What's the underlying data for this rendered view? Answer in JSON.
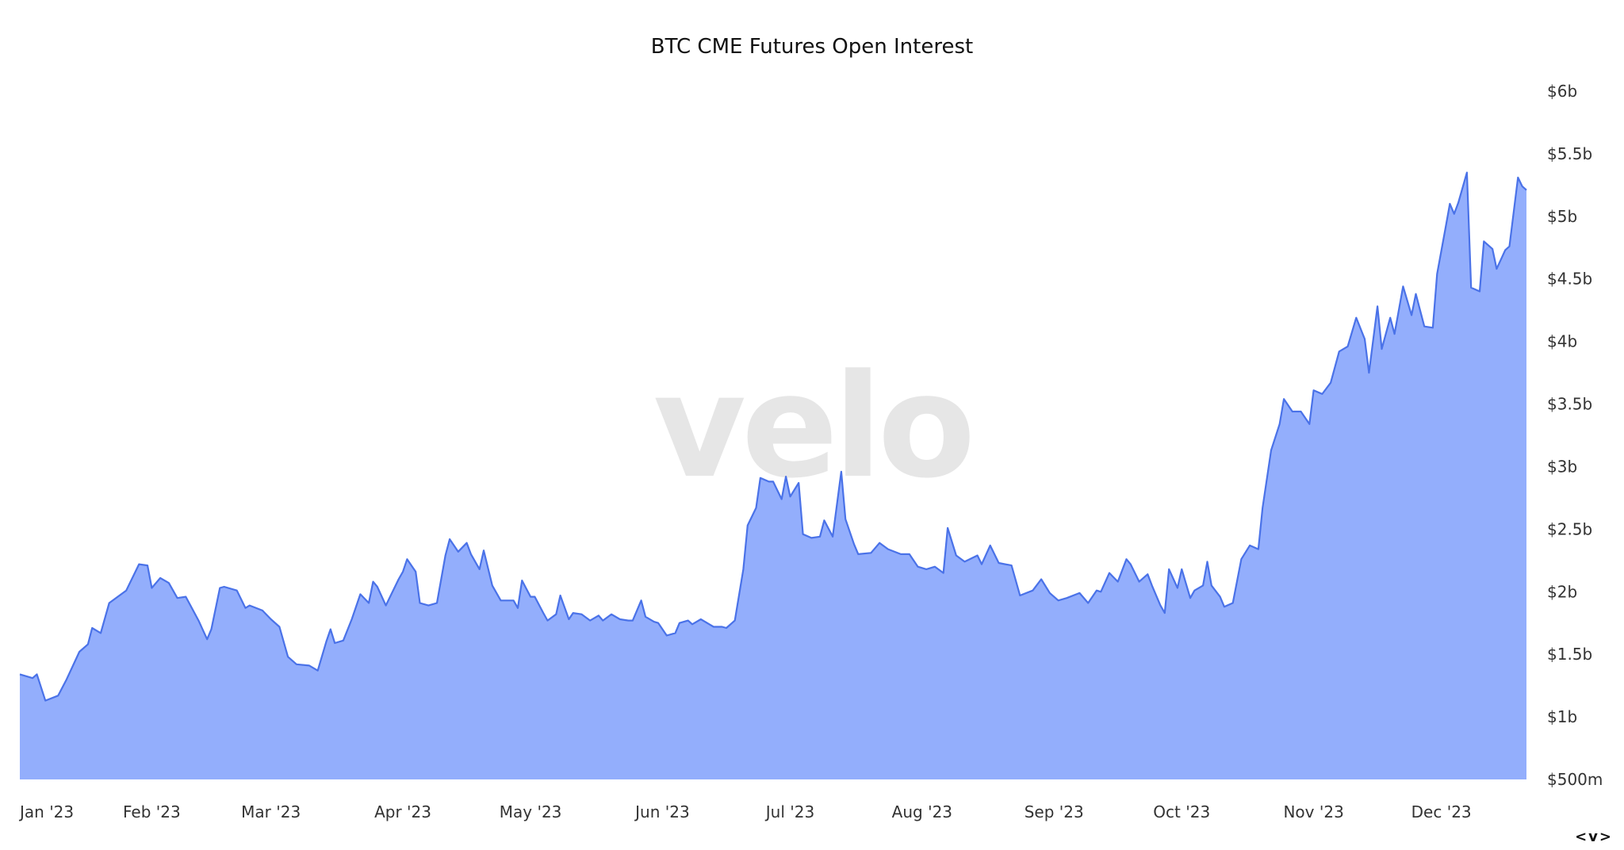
{
  "chart_data": {
    "type": "area",
    "title": "BTC CME Futures Open Interest",
    "xlabel": "",
    "ylabel": "",
    "ylim": [
      0.5,
      6
    ],
    "y_unit": "billions USD",
    "y_axis_position": "right",
    "grid": false,
    "legend": "none",
    "watermark": "velo",
    "colors": {
      "line": "#4a72e8",
      "fill": "#93aefc",
      "watermark": "#e6e6e6"
    },
    "y_ticks": [
      {
        "value": 0.5,
        "label": "$500m"
      },
      {
        "value": 1,
        "label": "$1b"
      },
      {
        "value": 1.5,
        "label": "$1.5b"
      },
      {
        "value": 2,
        "label": "$2b"
      },
      {
        "value": 2.5,
        "label": "$2.5b"
      },
      {
        "value": 3,
        "label": "$3b"
      },
      {
        "value": 3.5,
        "label": "$3.5b"
      },
      {
        "value": 4,
        "label": "$4b"
      },
      {
        "value": 4.5,
        "label": "$4.5b"
      },
      {
        "value": 5,
        "label": "$5b"
      },
      {
        "value": 5.5,
        "label": "$5.5b"
      },
      {
        "value": 6,
        "label": "$6b"
      }
    ],
    "x_ticks": [
      {
        "date": "2023-01-01",
        "label": "Jan '23"
      },
      {
        "date": "2023-02-01",
        "label": "Feb '23"
      },
      {
        "date": "2023-03-01",
        "label": "Mar '23"
      },
      {
        "date": "2023-04-01",
        "label": "Apr '23"
      },
      {
        "date": "2023-05-01",
        "label": "May '23"
      },
      {
        "date": "2023-06-01",
        "label": "Jun '23"
      },
      {
        "date": "2023-07-01",
        "label": "Jul '23"
      },
      {
        "date": "2023-08-01",
        "label": "Aug '23"
      },
      {
        "date": "2023-09-01",
        "label": "Sep '23"
      },
      {
        "date": "2023-10-01",
        "label": "Oct '23"
      },
      {
        "date": "2023-11-01",
        "label": "Nov '23"
      },
      {
        "date": "2023-12-01",
        "label": "Dec '23"
      }
    ],
    "xlim": [
      "2023-01-01",
      "2023-12-21"
    ],
    "points": [
      [
        "2023-01-01",
        1.34
      ],
      [
        "2023-01-04",
        1.31
      ],
      [
        "2023-01-05",
        1.34
      ],
      [
        "2023-01-07",
        1.13
      ],
      [
        "2023-01-10",
        1.17
      ],
      [
        "2023-01-12",
        1.3
      ],
      [
        "2023-01-15",
        1.52
      ],
      [
        "2023-01-17",
        1.58
      ],
      [
        "2023-01-18",
        1.71
      ],
      [
        "2023-01-20",
        1.67
      ],
      [
        "2023-01-22",
        1.91
      ],
      [
        "2023-01-26",
        2.01
      ],
      [
        "2023-01-29",
        2.22
      ],
      [
        "2023-01-31",
        2.21
      ],
      [
        "2023-02-01",
        2.03
      ],
      [
        "2023-02-03",
        2.11
      ],
      [
        "2023-02-05",
        2.07
      ],
      [
        "2023-02-07",
        1.95
      ],
      [
        "2023-02-09",
        1.96
      ],
      [
        "2023-02-12",
        1.77
      ],
      [
        "2023-02-14",
        1.62
      ],
      [
        "2023-02-15",
        1.7
      ],
      [
        "2023-02-17",
        2.03
      ],
      [
        "2023-02-18",
        2.04
      ],
      [
        "2023-02-21",
        2.01
      ],
      [
        "2023-02-23",
        1.87
      ],
      [
        "2023-02-24",
        1.89
      ],
      [
        "2023-02-27",
        1.85
      ],
      [
        "2023-03-01",
        1.78
      ],
      [
        "2023-03-03",
        1.72
      ],
      [
        "2023-03-05",
        1.48
      ],
      [
        "2023-03-07",
        1.42
      ],
      [
        "2023-03-10",
        1.41
      ],
      [
        "2023-03-12",
        1.37
      ],
      [
        "2023-03-14",
        1.6
      ],
      [
        "2023-03-15",
        1.7
      ],
      [
        "2023-03-16",
        1.59
      ],
      [
        "2023-03-18",
        1.61
      ],
      [
        "2023-03-20",
        1.78
      ],
      [
        "2023-03-22",
        1.98
      ],
      [
        "2023-03-24",
        1.91
      ],
      [
        "2023-03-25",
        2.08
      ],
      [
        "2023-03-26",
        2.04
      ],
      [
        "2023-03-28",
        1.89
      ],
      [
        "2023-03-31",
        2.1
      ],
      [
        "2023-04-01",
        2.16
      ],
      [
        "2023-04-02",
        2.26
      ],
      [
        "2023-04-04",
        2.16
      ],
      [
        "2023-04-05",
        1.91
      ],
      [
        "2023-04-07",
        1.89
      ],
      [
        "2023-04-09",
        1.91
      ],
      [
        "2023-04-11",
        2.29
      ],
      [
        "2023-04-12",
        2.42
      ],
      [
        "2023-04-14",
        2.32
      ],
      [
        "2023-04-16",
        2.39
      ],
      [
        "2023-04-17",
        2.3
      ],
      [
        "2023-04-19",
        2.18
      ],
      [
        "2023-04-20",
        2.33
      ],
      [
        "2023-04-22",
        2.05
      ],
      [
        "2023-04-24",
        1.93
      ],
      [
        "2023-04-27",
        1.93
      ],
      [
        "2023-04-28",
        1.87
      ],
      [
        "2023-04-29",
        2.09
      ],
      [
        "2023-05-01",
        1.96
      ],
      [
        "2023-05-02",
        1.96
      ],
      [
        "2023-05-04",
        1.83
      ],
      [
        "2023-05-05",
        1.77
      ],
      [
        "2023-05-07",
        1.82
      ],
      [
        "2023-05-08",
        1.97
      ],
      [
        "2023-05-10",
        1.78
      ],
      [
        "2023-05-11",
        1.83
      ],
      [
        "2023-05-13",
        1.82
      ],
      [
        "2023-05-15",
        1.77
      ],
      [
        "2023-05-17",
        1.81
      ],
      [
        "2023-05-18",
        1.77
      ],
      [
        "2023-05-20",
        1.82
      ],
      [
        "2023-05-22",
        1.78
      ],
      [
        "2023-05-24",
        1.77
      ],
      [
        "2023-05-25",
        1.77
      ],
      [
        "2023-05-27",
        1.93
      ],
      [
        "2023-05-28",
        1.8
      ],
      [
        "2023-05-30",
        1.76
      ],
      [
        "2023-05-31",
        1.75
      ],
      [
        "2023-06-02",
        1.65
      ],
      [
        "2023-06-04",
        1.67
      ],
      [
        "2023-06-05",
        1.75
      ],
      [
        "2023-06-07",
        1.77
      ],
      [
        "2023-06-08",
        1.74
      ],
      [
        "2023-06-10",
        1.78
      ],
      [
        "2023-06-12",
        1.74
      ],
      [
        "2023-06-13",
        1.72
      ],
      [
        "2023-06-15",
        1.72
      ],
      [
        "2023-06-16",
        1.71
      ],
      [
        "2023-06-18",
        1.77
      ],
      [
        "2023-06-20",
        2.18
      ],
      [
        "2023-06-21",
        2.53
      ],
      [
        "2023-06-23",
        2.67
      ],
      [
        "2023-06-24",
        2.91
      ],
      [
        "2023-06-26",
        2.88
      ],
      [
        "2023-06-27",
        2.88
      ],
      [
        "2023-06-29",
        2.74
      ],
      [
        "2023-06-30",
        2.92
      ],
      [
        "2023-07-01",
        2.76
      ],
      [
        "2023-07-03",
        2.87
      ],
      [
        "2023-07-04",
        2.46
      ],
      [
        "2023-07-06",
        2.43
      ],
      [
        "2023-07-08",
        2.44
      ],
      [
        "2023-07-09",
        2.57
      ],
      [
        "2023-07-11",
        2.44
      ],
      [
        "2023-07-13",
        2.96
      ],
      [
        "2023-07-14",
        2.58
      ],
      [
        "2023-07-16",
        2.38
      ],
      [
        "2023-07-17",
        2.3
      ],
      [
        "2023-07-20",
        2.31
      ],
      [
        "2023-07-22",
        2.39
      ],
      [
        "2023-07-24",
        2.34
      ],
      [
        "2023-07-27",
        2.3
      ],
      [
        "2023-07-29",
        2.3
      ],
      [
        "2023-07-31",
        2.2
      ],
      [
        "2023-08-02",
        2.18
      ],
      [
        "2023-08-04",
        2.2
      ],
      [
        "2023-08-06",
        2.15
      ],
      [
        "2023-08-07",
        2.51
      ],
      [
        "2023-08-09",
        2.29
      ],
      [
        "2023-08-11",
        2.24
      ],
      [
        "2023-08-14",
        2.29
      ],
      [
        "2023-08-15",
        2.22
      ],
      [
        "2023-08-17",
        2.37
      ],
      [
        "2023-08-19",
        2.23
      ],
      [
        "2023-08-22",
        2.21
      ],
      [
        "2023-08-24",
        1.97
      ],
      [
        "2023-08-27",
        2.01
      ],
      [
        "2023-08-29",
        2.1
      ],
      [
        "2023-08-31",
        1.99
      ],
      [
        "2023-09-02",
        1.93
      ],
      [
        "2023-09-04",
        1.95
      ],
      [
        "2023-09-07",
        1.99
      ],
      [
        "2023-09-09",
        1.91
      ],
      [
        "2023-09-11",
        2.01
      ],
      [
        "2023-09-12",
        2.0
      ],
      [
        "2023-09-14",
        2.15
      ],
      [
        "2023-09-16",
        2.08
      ],
      [
        "2023-09-18",
        2.26
      ],
      [
        "2023-09-19",
        2.22
      ],
      [
        "2023-09-21",
        2.08
      ],
      [
        "2023-09-23",
        2.14
      ],
      [
        "2023-09-24",
        2.05
      ],
      [
        "2023-09-26",
        1.89
      ],
      [
        "2023-09-27",
        1.83
      ],
      [
        "2023-09-28",
        2.18
      ],
      [
        "2023-09-30",
        2.03
      ],
      [
        "2023-10-01",
        2.18
      ],
      [
        "2023-10-03",
        1.95
      ],
      [
        "2023-10-04",
        2.01
      ],
      [
        "2023-10-06",
        2.05
      ],
      [
        "2023-10-07",
        2.24
      ],
      [
        "2023-10-08",
        2.05
      ],
      [
        "2023-10-10",
        1.96
      ],
      [
        "2023-10-11",
        1.88
      ],
      [
        "2023-10-13",
        1.91
      ],
      [
        "2023-10-15",
        2.26
      ],
      [
        "2023-10-17",
        2.37
      ],
      [
        "2023-10-19",
        2.34
      ],
      [
        "2023-10-20",
        2.67
      ],
      [
        "2023-10-22",
        3.13
      ],
      [
        "2023-10-24",
        3.34
      ],
      [
        "2023-10-25",
        3.54
      ],
      [
        "2023-10-27",
        3.44
      ],
      [
        "2023-10-29",
        3.44
      ],
      [
        "2023-10-31",
        3.34
      ],
      [
        "2023-11-01",
        3.61
      ],
      [
        "2023-11-03",
        3.58
      ],
      [
        "2023-11-05",
        3.67
      ],
      [
        "2023-11-07",
        3.92
      ],
      [
        "2023-11-09",
        3.96
      ],
      [
        "2023-11-11",
        4.19
      ],
      [
        "2023-11-13",
        4.02
      ],
      [
        "2023-11-14",
        3.75
      ],
      [
        "2023-11-16",
        4.28
      ],
      [
        "2023-11-17",
        3.94
      ],
      [
        "2023-11-19",
        4.19
      ],
      [
        "2023-11-20",
        4.06
      ],
      [
        "2023-11-22",
        4.44
      ],
      [
        "2023-11-24",
        4.21
      ],
      [
        "2023-11-25",
        4.38
      ],
      [
        "2023-11-27",
        4.12
      ],
      [
        "2023-11-29",
        4.11
      ],
      [
        "2023-11-30",
        4.54
      ],
      [
        "2023-12-02",
        4.91
      ],
      [
        "2023-12-03",
        5.1
      ],
      [
        "2023-12-04",
        5.02
      ],
      [
        "2023-12-05",
        5.11
      ],
      [
        "2023-12-07",
        5.35
      ],
      [
        "2023-12-08",
        4.43
      ],
      [
        "2023-12-10",
        4.4
      ],
      [
        "2023-12-11",
        4.8
      ],
      [
        "2023-12-13",
        4.74
      ],
      [
        "2023-12-14",
        4.58
      ],
      [
        "2023-12-16",
        4.73
      ],
      [
        "2023-12-17",
        4.76
      ],
      [
        "2023-12-19",
        5.31
      ],
      [
        "2023-12-20",
        5.24
      ],
      [
        "2023-12-21",
        5.21
      ]
    ]
  },
  "nav": {
    "label": "<v>",
    "icon": "scroll-arrows-icon"
  }
}
